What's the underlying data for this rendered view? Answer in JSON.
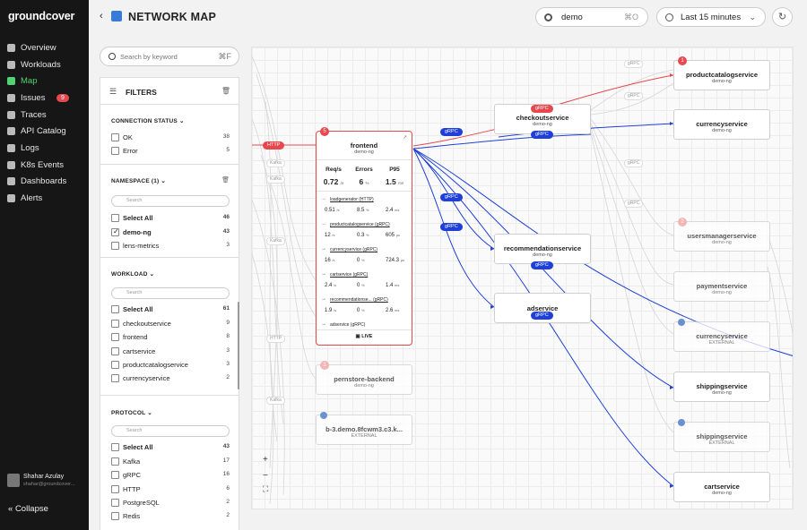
{
  "app": {
    "logo": "groundcover"
  },
  "sidebar": {
    "items": [
      {
        "label": "Overview",
        "icon": "overview-icon",
        "active": false
      },
      {
        "label": "Workloads",
        "icon": "workloads-icon",
        "active": false
      },
      {
        "label": "Map",
        "icon": "map-icon",
        "active": true
      },
      {
        "label": "Issues",
        "icon": "issues-icon",
        "active": false,
        "badge": "9"
      },
      {
        "label": "Traces",
        "icon": "traces-icon",
        "active": false
      },
      {
        "label": "API Catalog",
        "icon": "api-catalog-icon",
        "active": false
      },
      {
        "label": "Logs",
        "icon": "logs-icon",
        "active": false
      },
      {
        "label": "K8s Events",
        "icon": "k8s-events-icon",
        "active": false
      },
      {
        "label": "Dashboards",
        "icon": "dashboards-icon",
        "active": false
      },
      {
        "label": "Alerts",
        "icon": "alerts-icon",
        "active": false
      }
    ],
    "user": {
      "name": "Shahar Azulay",
      "email": "shahar@groundcover..."
    },
    "collapse_label": "Collapse"
  },
  "header": {
    "title": "NETWORK MAP",
    "env": {
      "value": "demo",
      "shortcut": "⌘O"
    },
    "time_range": "Last 15 minutes"
  },
  "search": {
    "placeholder": "Search by keyword",
    "shortcut": "⌘F"
  },
  "filters": {
    "title": "FILTERS",
    "connection_status": {
      "title": "CONNECTION STATUS",
      "options": [
        {
          "label": "OK",
          "count": "38",
          "checked": false
        },
        {
          "label": "Error",
          "count": "5",
          "checked": false
        }
      ]
    },
    "namespace": {
      "title": "NAMESPACE (1)",
      "search_placeholder": "Search",
      "options": [
        {
          "label": "Select All",
          "count": "46",
          "checked": false,
          "bold": true
        },
        {
          "label": "demo-ng",
          "count": "43",
          "checked": true,
          "bold": true
        },
        {
          "label": "lens-metrics",
          "count": "3",
          "checked": false
        }
      ]
    },
    "workload": {
      "title": "WORKLOAD",
      "search_placeholder": "Search",
      "options": [
        {
          "label": "Select All",
          "count": "61",
          "checked": false,
          "bold": true
        },
        {
          "label": "checkoutservice",
          "count": "9",
          "checked": false
        },
        {
          "label": "frontend",
          "count": "8",
          "checked": false
        },
        {
          "label": "cartservice",
          "count": "3",
          "checked": false
        },
        {
          "label": "productcatalogservice",
          "count": "3",
          "checked": false
        },
        {
          "label": "currencyservice",
          "count": "2",
          "checked": false
        }
      ]
    },
    "protocol": {
      "title": "PROTOCOL",
      "search_placeholder": "Search",
      "options": [
        {
          "label": "Select All",
          "count": "43",
          "checked": false,
          "bold": true
        },
        {
          "label": "Kafka",
          "count": "17",
          "checked": false
        },
        {
          "label": "gRPC",
          "count": "16",
          "checked": false
        },
        {
          "label": "HTTP",
          "count": "6",
          "checked": false
        },
        {
          "label": "PostgreSQL",
          "count": "2",
          "checked": false
        },
        {
          "label": "Redis",
          "count": "2",
          "checked": false
        }
      ]
    }
  },
  "map": {
    "colors": {
      "error": "#e5484d",
      "grpc": "#1e40d8"
    },
    "frontend": {
      "name": "frontend",
      "namespace": "demo-ng",
      "badge": "5",
      "metrics": [
        {
          "label": "Req/s",
          "value": "0.72",
          "unit": "/s"
        },
        {
          "label": "Errors",
          "value": "6",
          "unit": "%"
        },
        {
          "label": "P95",
          "value": "1.5",
          "unit": "ms"
        }
      ],
      "deps": [
        {
          "name": "loadgenerator",
          "proto": "(HTTP)",
          "rate": "0.51",
          "err": "8.5",
          "p95": "2.4",
          "p95_unit": "ms",
          "error": true
        },
        {
          "name": "productcatalogservice",
          "proto": "(gRPC)",
          "rate": "12",
          "err": "0.3",
          "p95": "605",
          "p95_unit": "µs",
          "error": true
        },
        {
          "name": "currencyservice",
          "proto": "(gRPC)",
          "rate": "16",
          "err": "0",
          "p95": "724.3",
          "p95_unit": "µs",
          "error": false
        },
        {
          "name": "cartservice",
          "proto": "(gRPC)",
          "rate": "2.4",
          "err": "0",
          "p95": "1.4",
          "p95_unit": "ms",
          "error": false
        },
        {
          "name": "recommendationse...",
          "proto": "(gRPC)",
          "rate": "1.9",
          "err": "0",
          "p95": "2.6",
          "p95_unit": "ms",
          "error": false
        }
      ],
      "last_dep": "adservice (gRPC)",
      "live_label": "LIVE"
    },
    "nodes": [
      {
        "name": "checkoutservice",
        "namespace": "demo-ng"
      },
      {
        "name": "recommendationservice",
        "namespace": "demo-ng"
      },
      {
        "name": "adservice",
        "namespace": "demo-ng"
      },
      {
        "name": "pernstore-backend",
        "namespace": "demo-ng",
        "badge": "1"
      },
      {
        "name": "b-3.demo.8fcwm3.c3.k...",
        "namespace": "EXTERNAL"
      },
      {
        "name": "productcatalogservice",
        "namespace": "demo-ng",
        "badge": "1"
      },
      {
        "name": "currencyservice",
        "namespace": "demo-ng"
      },
      {
        "name": "usersmanagerservice",
        "namespace": "demo-ng",
        "badge": "2"
      },
      {
        "name": "paymentservice",
        "namespace": "demo-ng"
      },
      {
        "name": "currencyservice",
        "namespace": "EXTERNAL"
      },
      {
        "name": "shippingservice",
        "namespace": "demo-ng"
      },
      {
        "name": "shippingservice",
        "namespace": "EXTERNAL"
      },
      {
        "name": "cartservice",
        "namespace": "demo-ng"
      }
    ],
    "protocol_labels": {
      "http": "HTTP",
      "grpc": "gRPC",
      "kafka": "Kafka"
    },
    "zoom": {
      "in": "+",
      "out": "−",
      "fit": "⛶"
    }
  }
}
